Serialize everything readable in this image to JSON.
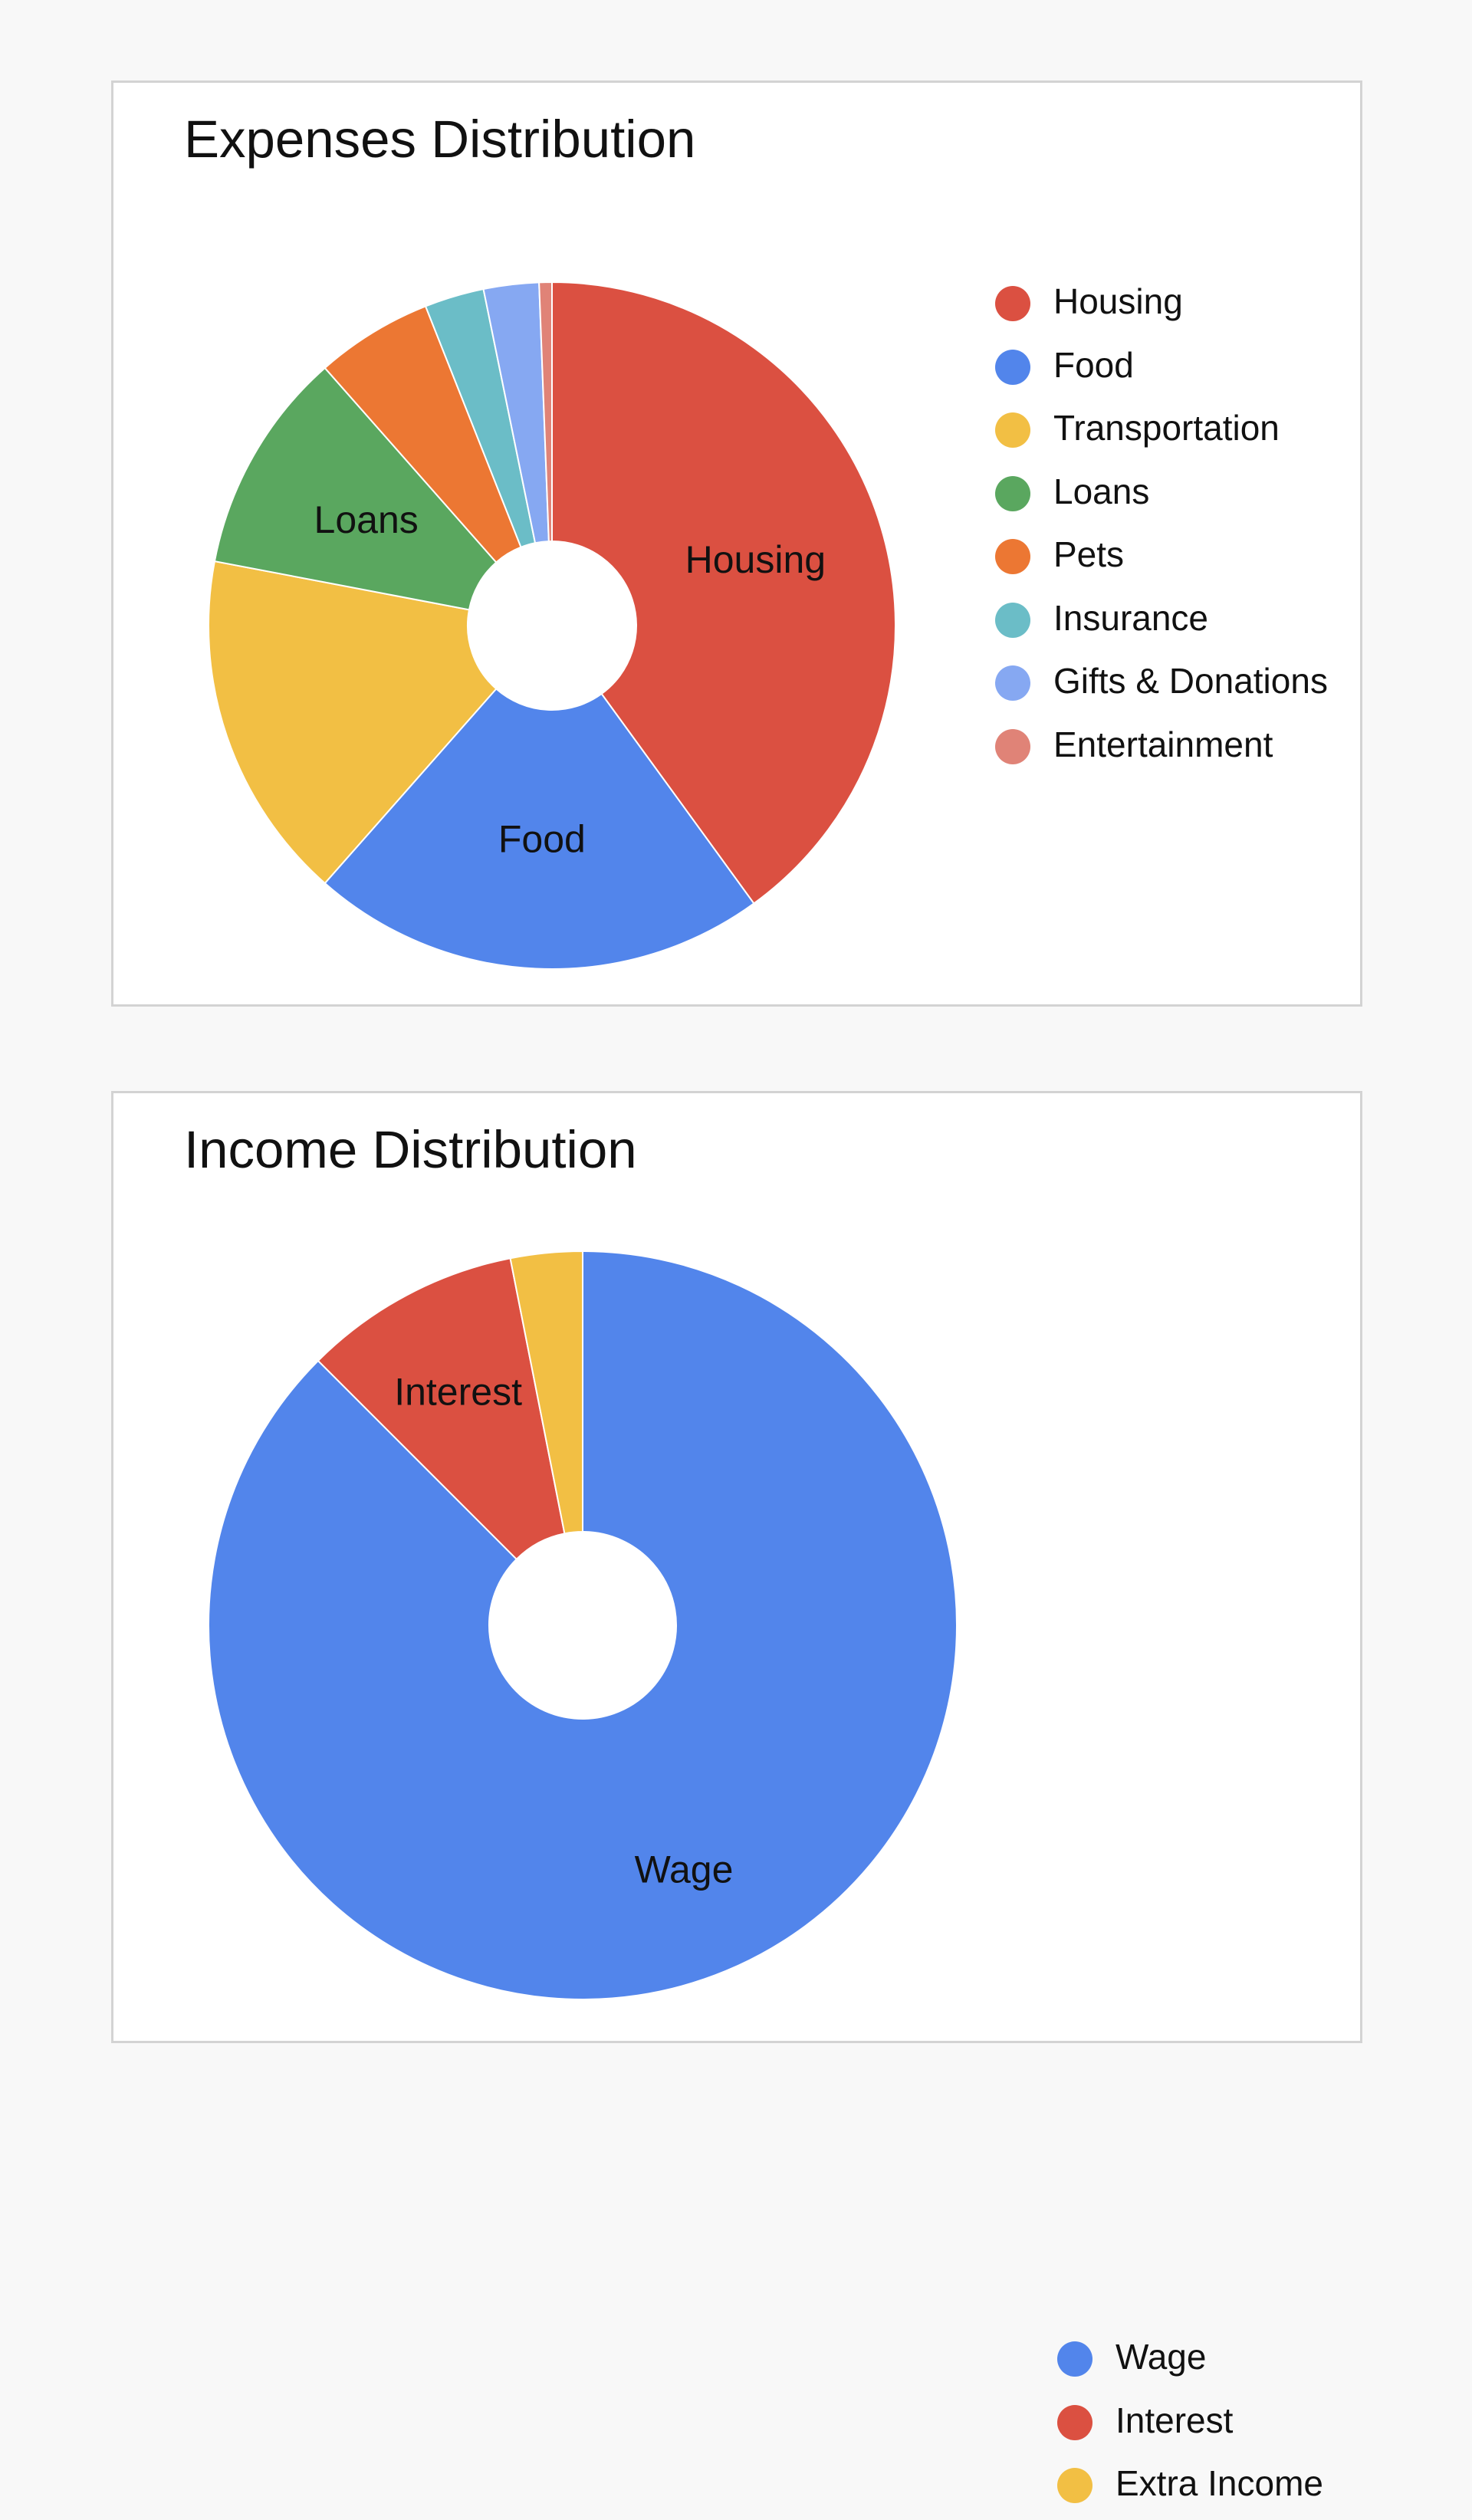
{
  "charts": [
    {
      "title": "Expenses Distribution",
      "legend_position": "right",
      "chart_data": {
        "type": "pie",
        "title": "Expenses Distribution",
        "donut": true,
        "categories": [
          "Housing",
          "Food",
          "Transportation",
          "Loans",
          "Pets",
          "Insurance",
          "Gifts & Donations",
          "Entertainment"
        ],
        "values": [
          40.0,
          21.5,
          16.5,
          10.5,
          5.5,
          2.8,
          2.6,
          0.6
        ],
        "colors": [
          "#db5041",
          "#5285eb",
          "#f2bf44",
          "#5aa75f",
          "#ec7733",
          "#6bbdc7",
          "#86a8f2",
          "#e08377"
        ],
        "slice_labels": [
          "Housing",
          "Food",
          "",
          "Loans",
          "",
          "",
          "",
          ""
        ]
      }
    },
    {
      "title": "Income Distribution",
      "legend_position": "right",
      "chart_data": {
        "type": "pie",
        "title": "Income Distribution",
        "donut": true,
        "categories": [
          "Wage",
          "Interest",
          "Extra Income"
        ],
        "values": [
          87.5,
          9.4,
          3.1
        ],
        "colors": [
          "#5285eb",
          "#db5041",
          "#f2bf44"
        ],
        "slice_labels": [
          "Wage",
          "Interest",
          ""
        ]
      }
    }
  ]
}
